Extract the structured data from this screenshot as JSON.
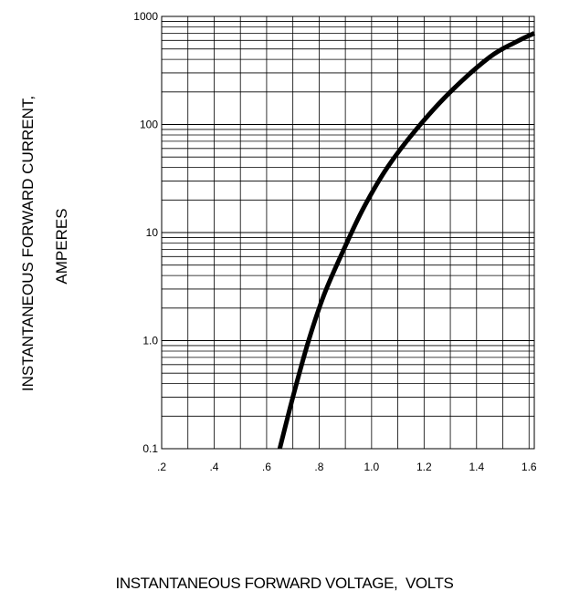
{
  "chart_data": {
    "type": "line",
    "title": "",
    "xlabel": "INSTANTANEOUS FORWARD VOLTAGE,  VOLTS",
    "ylabel_line1": "INSTANTANEOUS FORWARD CURRENT,",
    "ylabel_line2": "AMPERES",
    "x_scale": "linear",
    "y_scale": "log",
    "xlim": [
      0.2,
      1.62
    ],
    "ylim": [
      0.1,
      1000
    ],
    "grid": true,
    "x_ticks": [
      {
        "value": 0.2,
        "label": ".2"
      },
      {
        "value": 0.4,
        "label": ".4"
      },
      {
        "value": 0.6,
        "label": ".6"
      },
      {
        "value": 0.8,
        "label": ".8"
      },
      {
        "value": 1.0,
        "label": "1.0"
      },
      {
        "value": 1.2,
        "label": "1.2"
      },
      {
        "value": 1.4,
        "label": "1.4"
      },
      {
        "value": 1.6,
        "label": "1.6"
      }
    ],
    "y_ticks": [
      {
        "value": 0.1,
        "label": "0.1"
      },
      {
        "value": 1,
        "label": "1.0"
      },
      {
        "value": 10,
        "label": "10"
      },
      {
        "value": 100,
        "label": "100"
      },
      {
        "value": 1000,
        "label": "1000"
      }
    ],
    "series": [
      {
        "x": [
          0.65,
          0.7,
          0.76,
          0.82,
          0.9,
          0.97,
          1.06,
          1.17,
          1.3,
          1.45,
          1.55,
          1.62
        ],
        "y": [
          0.1,
          0.3,
          1.0,
          2.7,
          7.5,
          17,
          40,
          90,
          200,
          420,
          580,
          700
        ]
      }
    ],
    "line_color": "#000000"
  }
}
